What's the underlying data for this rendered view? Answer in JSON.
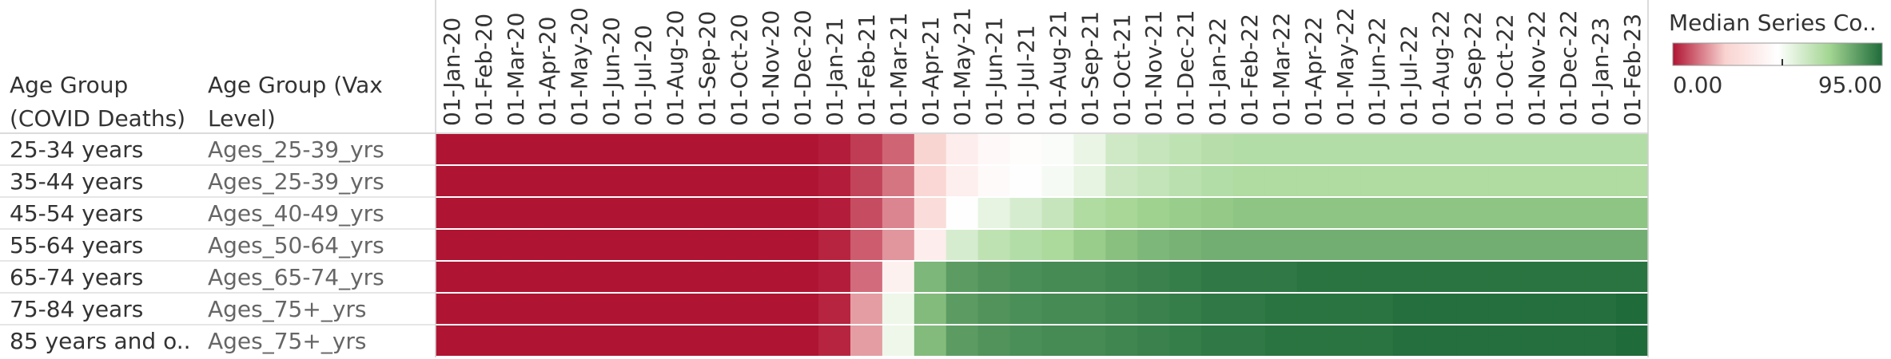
{
  "chart_data": {
    "type": "heatmap",
    "row_headers": [
      "Age Group\n(COVID Deaths)",
      "Age Group (Vax\nLevel)"
    ],
    "x": [
      "01-Jan-20",
      "01-Feb-20",
      "01-Mar-20",
      "01-Apr-20",
      "01-May-20",
      "01-Jun-20",
      "01-Jul-20",
      "01-Aug-20",
      "01-Sep-20",
      "01-Oct-20",
      "01-Nov-20",
      "01-Dec-20",
      "01-Jan-21",
      "01-Feb-21",
      "01-Mar-21",
      "01-Apr-21",
      "01-May-21",
      "01-Jun-21",
      "01-Jul-21",
      "01-Aug-21",
      "01-Sep-21",
      "01-Oct-21",
      "01-Nov-21",
      "01-Dec-21",
      "01-Jan-22",
      "01-Feb-22",
      "01-Mar-22",
      "01-Apr-22",
      "01-May-22",
      "01-Jun-22",
      "01-Jul-22",
      "01-Aug-22",
      "01-Sep-22",
      "01-Oct-22",
      "01-Nov-22",
      "01-Dec-22",
      "01-Jan-23",
      "01-Feb-23"
    ],
    "rows": [
      {
        "age_group": "25-34 years",
        "vax_level": "Ages_25-39_yrs",
        "values": [
          0,
          0,
          0,
          0,
          0,
          0,
          0,
          0,
          0,
          0,
          0,
          0,
          1,
          5,
          10,
          25,
          38,
          44,
          46,
          49,
          53,
          60,
          62,
          64,
          66,
          67,
          67,
          67,
          67,
          67,
          67,
          67,
          67,
          67,
          67,
          67,
          67,
          67
        ]
      },
      {
        "age_group": "35-44 years",
        "vax_level": "Ages_25-39_yrs",
        "values": [
          0,
          0,
          0,
          0,
          0,
          0,
          0,
          0,
          0,
          0,
          0,
          0,
          1,
          6,
          12,
          26,
          39,
          45,
          47,
          50,
          54,
          61,
          63,
          65,
          67,
          68,
          68,
          68,
          68,
          68,
          68,
          68,
          68,
          68,
          68,
          68,
          68,
          68
        ]
      },
      {
        "age_group": "45-54 years",
        "vax_level": "Ages_40-49_yrs",
        "values": [
          0,
          0,
          0,
          0,
          0,
          0,
          0,
          0,
          0,
          0,
          0,
          0,
          1,
          7,
          14,
          29,
          48,
          54,
          58,
          62,
          68,
          70,
          72,
          73,
          74,
          75,
          75,
          75,
          75,
          75,
          75,
          75,
          75,
          75,
          75,
          75,
          75,
          75
        ]
      },
      {
        "age_group": "55-64 years",
        "vax_level": "Ages_50-64_yrs",
        "values": [
          0,
          0,
          0,
          0,
          0,
          0,
          0,
          0,
          0,
          0,
          0,
          0,
          2,
          9,
          16,
          38,
          58,
          64,
          67,
          69,
          73,
          76,
          78,
          79,
          80,
          80,
          80,
          80,
          80,
          80,
          80,
          80,
          80,
          80,
          80,
          80,
          80,
          80
        ]
      },
      {
        "age_group": "65-74 years",
        "vax_level": "Ages_65-74_yrs",
        "values": [
          0,
          0,
          0,
          0,
          0,
          0,
          0,
          0,
          0,
          0,
          0,
          0,
          1,
          11,
          40,
          78,
          84,
          86,
          87,
          88,
          88,
          89,
          90,
          91,
          92,
          92,
          92,
          93,
          93,
          93,
          93,
          93,
          93,
          93,
          93,
          93,
          93,
          93
        ]
      },
      {
        "age_group": "75-84 years",
        "vax_level": "Ages_75+_yrs",
        "values": [
          0,
          0,
          0,
          0,
          0,
          0,
          0,
          0,
          0,
          0,
          0,
          0,
          2,
          17,
          52,
          77,
          84,
          86,
          87,
          88,
          88,
          89,
          90,
          91,
          92,
          92,
          93,
          93,
          93,
          93,
          94,
          94,
          94,
          94,
          94,
          94,
          94,
          95
        ]
      },
      {
        "age_group": "85 years and o..",
        "vax_level": "Ages_75+_yrs",
        "values": [
          0,
          0,
          0,
          0,
          0,
          0,
          0,
          0,
          0,
          0,
          0,
          0,
          2,
          17,
          52,
          77,
          84,
          86,
          87,
          88,
          88,
          89,
          90,
          91,
          92,
          92,
          93,
          93,
          93,
          93,
          94,
          94,
          94,
          94,
          94,
          94,
          94,
          95
        ]
      }
    ],
    "legend": {
      "title": "Median Series Co..",
      "min_label": "0.00",
      "max_label": "95.00",
      "min": 0,
      "max": 95,
      "colors": [
        "#b01433",
        "#f9d3d0",
        "#ffffff",
        "#a3d592",
        "#1f6b3a"
      ]
    }
  }
}
